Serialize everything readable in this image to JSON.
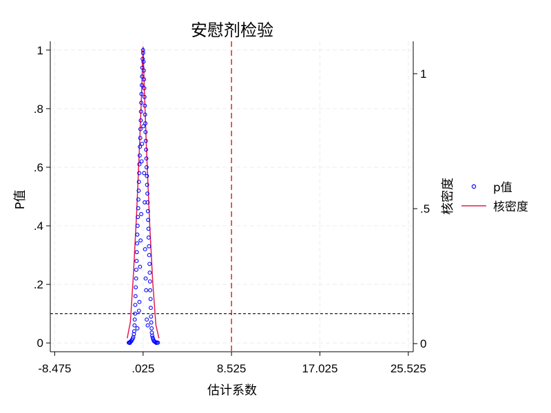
{
  "chart_data": {
    "type": "scatter",
    "title": "安慰剂检验",
    "xlabel": "估计系数",
    "ylabel_left": "P值",
    "ylabel_right": "核密度",
    "x_ticks": [
      "-8.475",
      ".025",
      "8.525",
      "17.025",
      "25.525"
    ],
    "x_tick_values": [
      -8.475,
      0.025,
      8.525,
      17.025,
      25.525
    ],
    "y_left_ticks": [
      "0",
      ".2",
      ".4",
      ".6",
      ".8",
      "1"
    ],
    "y_left_tick_values": [
      0,
      0.2,
      0.4,
      0.6,
      0.8,
      1.0
    ],
    "y_right_ticks": [
      "0",
      ".5",
      "1"
    ],
    "y_right_tick_values": [
      0,
      0.5,
      1.0
    ],
    "xlim": [
      -8.9,
      26.0
    ],
    "ylim_left": [
      -0.03,
      1.03
    ],
    "ylim_right": [
      -0.03,
      1.12
    ],
    "grid": true,
    "legend_position": "right",
    "reference_lines": {
      "vertical_x": 8.525,
      "vertical_color": "#d62728",
      "horizontal_p": 0.1
    },
    "series": [
      {
        "name": "p值",
        "kind": "scatter",
        "color": "#0000ff",
        "points": [
          [
            0.02,
            1.0
          ],
          [
            0.03,
            0.99
          ],
          [
            -0.02,
            0.97
          ],
          [
            0.06,
            0.96
          ],
          [
            -0.05,
            0.94
          ],
          [
            0.09,
            0.93
          ],
          [
            -0.08,
            0.91
          ],
          [
            0.11,
            0.9
          ],
          [
            -0.1,
            0.88
          ],
          [
            0.14,
            0.87
          ],
          [
            -0.13,
            0.85
          ],
          [
            0.16,
            0.84
          ],
          [
            -0.15,
            0.82
          ],
          [
            0.19,
            0.81
          ],
          [
            -0.18,
            0.79
          ],
          [
            0.21,
            0.78
          ],
          [
            -0.2,
            0.76
          ],
          [
            0.24,
            0.75
          ],
          [
            -0.23,
            0.73
          ],
          [
            0.26,
            0.72
          ],
          [
            -0.25,
            0.7
          ],
          [
            0.29,
            0.69
          ],
          [
            -0.28,
            0.67
          ],
          [
            0.31,
            0.66
          ],
          [
            -0.3,
            0.64
          ],
          [
            0.34,
            0.63
          ],
          [
            -0.33,
            0.61
          ],
          [
            0.36,
            0.6
          ],
          [
            -0.35,
            0.58
          ],
          [
            0.39,
            0.57
          ],
          [
            -0.38,
            0.55
          ],
          [
            0.41,
            0.54
          ],
          [
            -0.4,
            0.52
          ],
          [
            0.44,
            0.51
          ],
          [
            -0.43,
            0.49
          ],
          [
            0.46,
            0.48
          ],
          [
            -0.45,
            0.46
          ],
          [
            0.49,
            0.45
          ],
          [
            -0.48,
            0.43
          ],
          [
            0.51,
            0.42
          ],
          [
            -0.5,
            0.4
          ],
          [
            0.54,
            0.39
          ],
          [
            -0.53,
            0.37
          ],
          [
            0.56,
            0.36
          ],
          [
            -0.55,
            0.34
          ],
          [
            0.59,
            0.33
          ],
          [
            -0.58,
            0.31
          ],
          [
            0.61,
            0.3
          ],
          [
            -0.6,
            0.28
          ],
          [
            0.64,
            0.27
          ],
          [
            -0.63,
            0.25
          ],
          [
            0.66,
            0.24
          ],
          [
            -0.65,
            0.22
          ],
          [
            0.69,
            0.21
          ],
          [
            -0.68,
            0.19
          ],
          [
            0.71,
            0.18
          ],
          [
            -0.7,
            0.16
          ],
          [
            0.74,
            0.15
          ],
          [
            -0.73,
            0.13
          ],
          [
            0.76,
            0.12
          ],
          [
            -0.75,
            0.1
          ],
          [
            0.79,
            0.09
          ],
          [
            -0.78,
            0.08
          ],
          [
            0.81,
            0.07
          ],
          [
            -0.8,
            0.06
          ],
          [
            0.84,
            0.05
          ],
          [
            -0.83,
            0.04
          ],
          [
            0.87,
            0.035
          ],
          [
            -0.86,
            0.03
          ],
          [
            0.9,
            0.025
          ],
          [
            -0.92,
            0.02
          ],
          [
            0.95,
            0.018
          ],
          [
            -0.97,
            0.015
          ],
          [
            1.0,
            0.012
          ],
          [
            -1.05,
            0.01
          ],
          [
            1.05,
            0.008
          ],
          [
            -1.12,
            0.006
          ],
          [
            1.1,
            0.005
          ],
          [
            -1.2,
            0.004
          ],
          [
            1.2,
            0.003
          ],
          [
            -1.3,
            0.002
          ],
          [
            1.35,
            0.002
          ],
          [
            -1.35,
            0.001
          ],
          [
            1.45,
            0.001
          ],
          [
            1.3,
            0.0
          ],
          [
            -1.25,
            0.0
          ],
          [
            -0.12,
            0.62
          ],
          [
            0.18,
            0.48
          ],
          [
            -0.22,
            0.35
          ],
          [
            0.27,
            0.22
          ],
          [
            -0.33,
            0.14
          ],
          [
            0.38,
            0.08
          ],
          [
            0.05,
            0.74
          ],
          [
            -0.07,
            0.68
          ],
          [
            0.12,
            0.58
          ],
          [
            -0.16,
            0.44
          ],
          [
            0.22,
            0.32
          ],
          [
            -0.27,
            0.26
          ],
          [
            0.32,
            0.18
          ],
          [
            -0.37,
            0.11
          ],
          [
            0.47,
            0.06
          ],
          [
            -0.52,
            0.05
          ]
        ]
      },
      {
        "name": "核密度",
        "kind": "line",
        "axis": "right",
        "color": "#e6194b",
        "x": [
          -1.5,
          -1.2,
          -0.9,
          -0.6,
          -0.3,
          -0.1,
          0.02,
          0.15,
          0.35,
          0.65,
          0.95,
          1.25,
          1.55
        ],
        "y": [
          0.02,
          0.08,
          0.26,
          0.48,
          0.75,
          0.95,
          1.1,
          0.93,
          0.72,
          0.45,
          0.23,
          0.07,
          0.02
        ]
      }
    ]
  }
}
